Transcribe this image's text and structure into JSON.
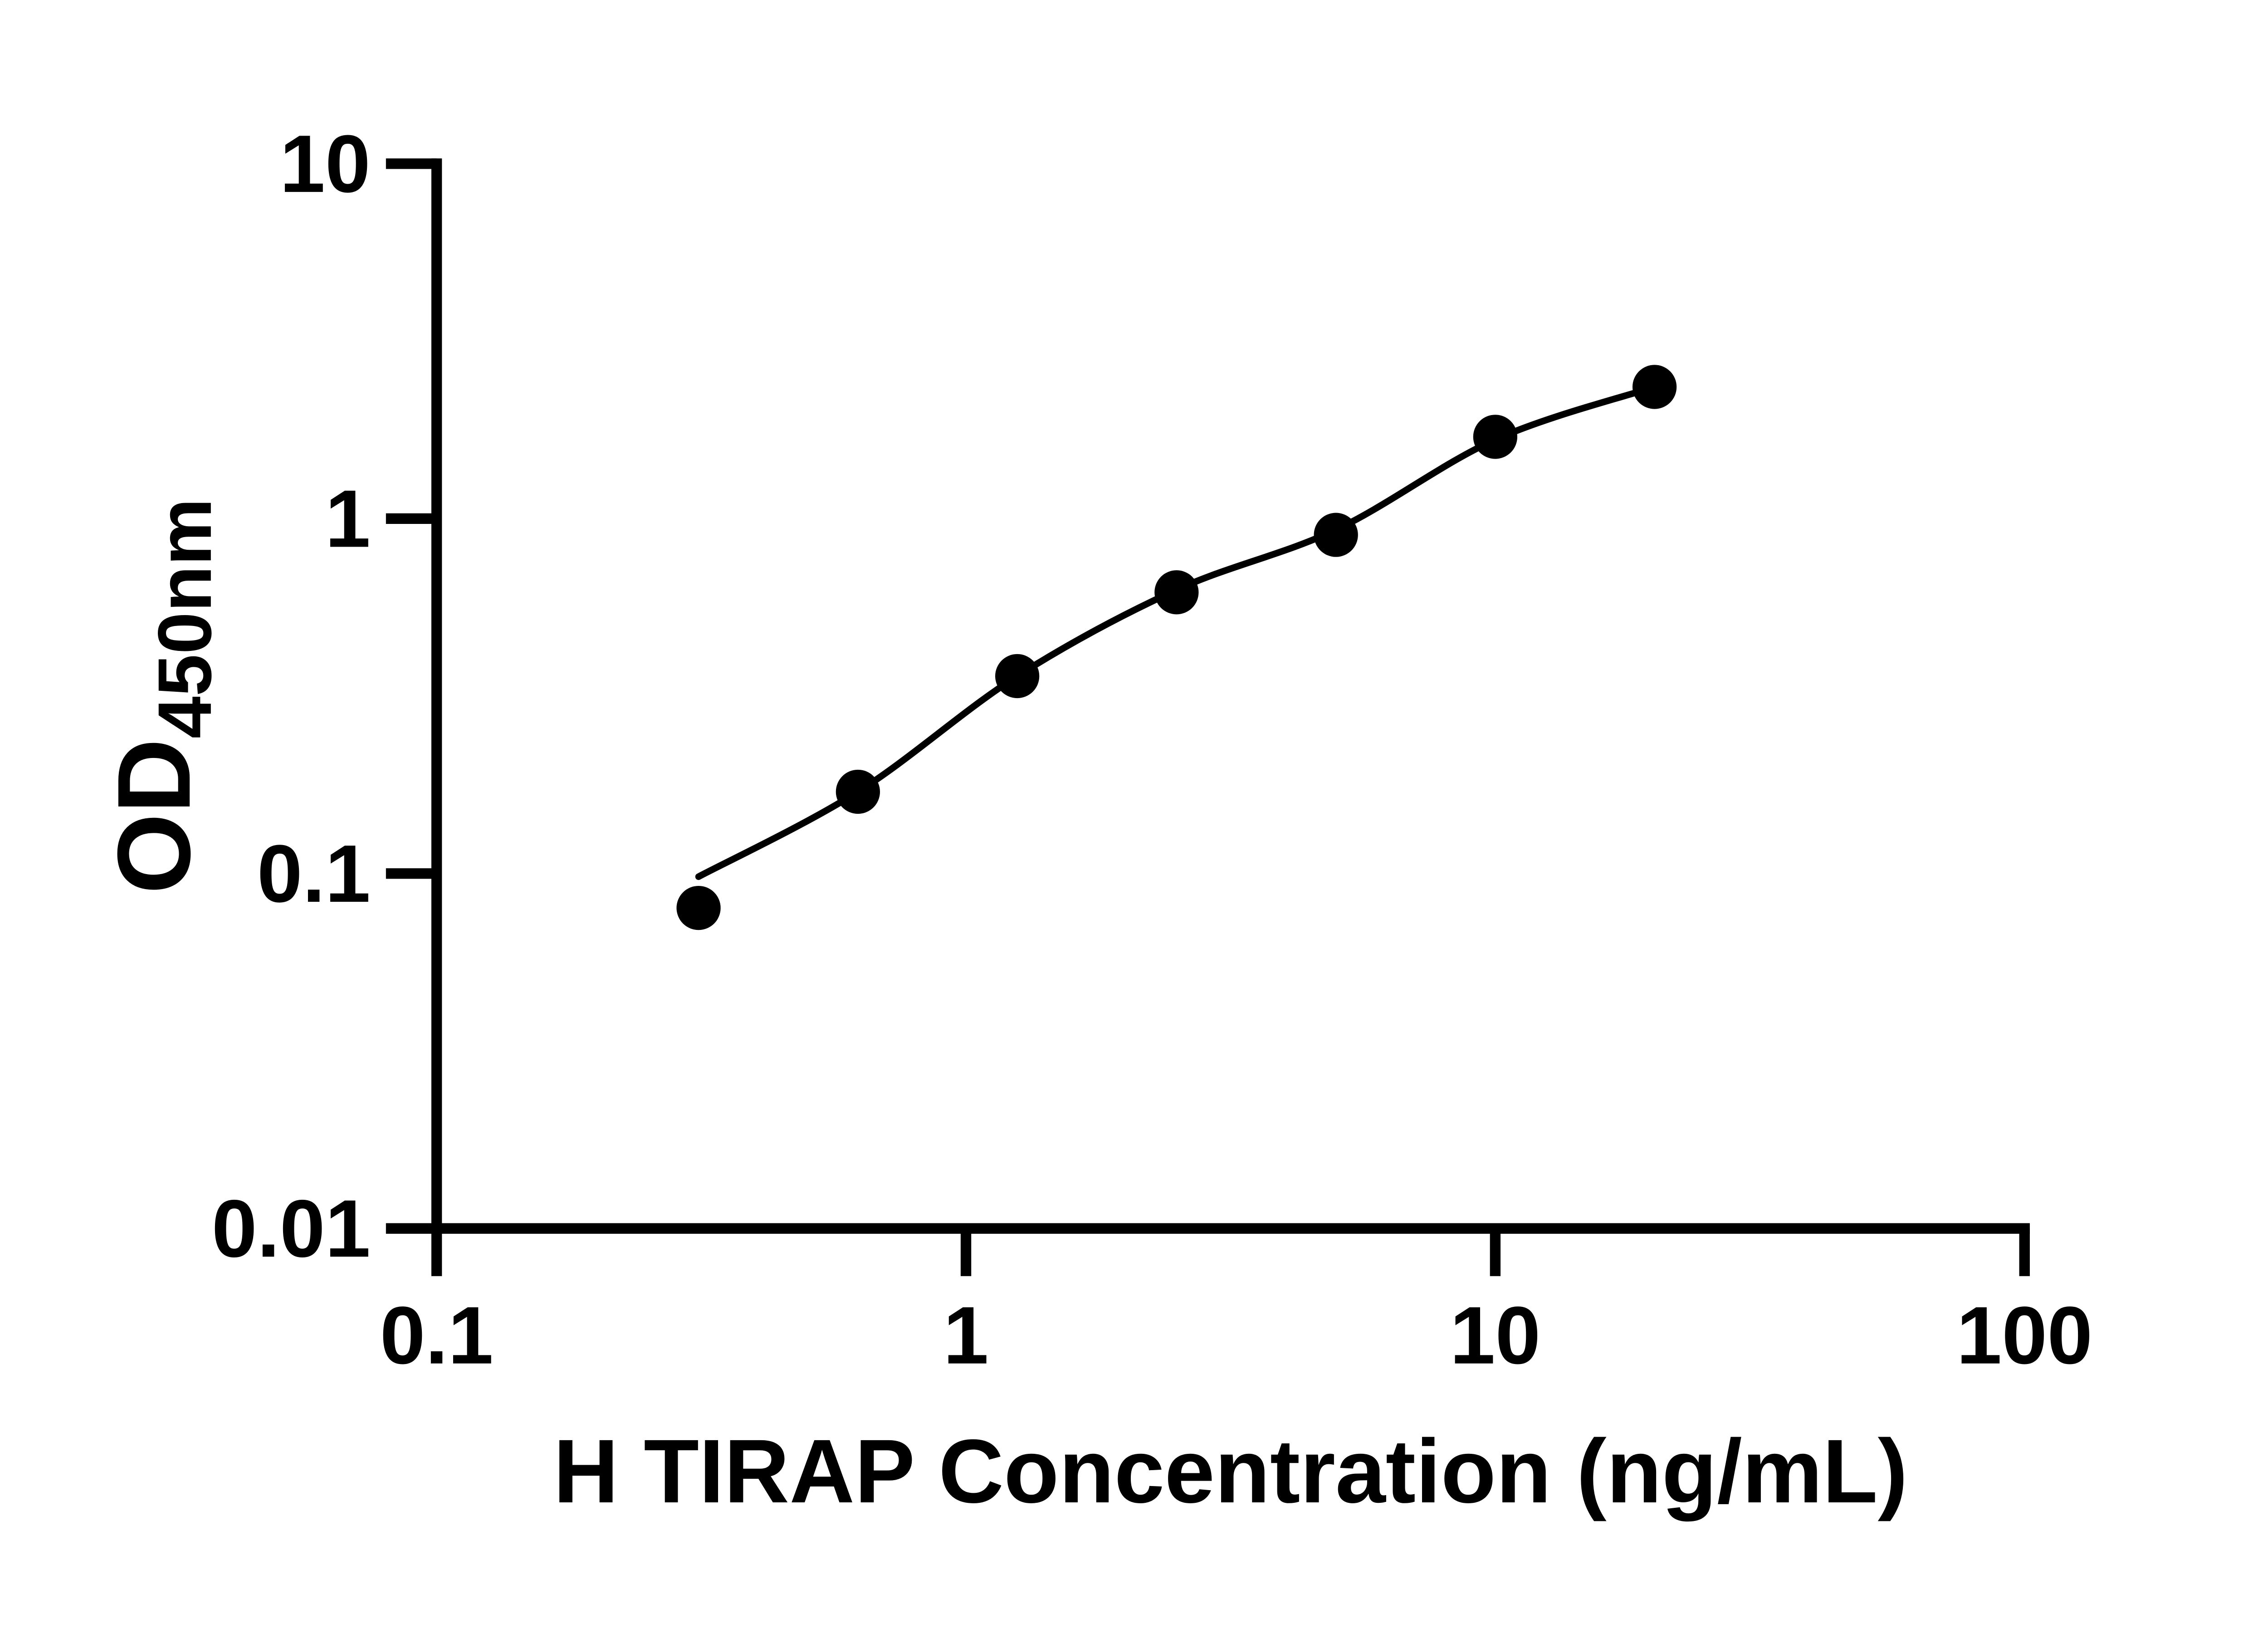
{
  "figure": {
    "background_color": "#ffffff",
    "ink_color": "#000000"
  },
  "chart_data": {
    "type": "scatter",
    "title": "",
    "xlabel": "H TIRAP Concentration (ng/mL)",
    "ylabel_main": "OD",
    "ylabel_sub": "450nm",
    "x_scale": "log",
    "y_scale": "log",
    "xlim": [
      0.1,
      100
    ],
    "ylim": [
      0.01,
      10
    ],
    "x_ticks": [
      0.1,
      1,
      10,
      100
    ],
    "x_tick_labels": [
      "0.1",
      "1",
      "10",
      "100"
    ],
    "y_ticks": [
      0.01,
      0.1,
      1,
      10
    ],
    "y_tick_labels": [
      "0.01",
      "0.1",
      "1",
      "10"
    ],
    "grid": false,
    "legend": false,
    "series": [
      {
        "name": "H TIRAP standard curve points",
        "marker": "filled-circle",
        "marker_color": "#000000",
        "x": [
          0.3125,
          0.625,
          1.25,
          2.5,
          5,
          10,
          20
        ],
        "y": [
          0.08,
          0.17,
          0.36,
          0.62,
          0.9,
          1.7,
          2.35
        ]
      }
    ],
    "fit_curve": {
      "name": "4PL fit line",
      "color": "#000000",
      "x": [
        0.3125,
        0.625,
        1.25,
        2.5,
        5,
        10,
        20
      ],
      "y": [
        0.098,
        0.17,
        0.36,
        0.63,
        0.93,
        1.67,
        2.35
      ]
    }
  }
}
